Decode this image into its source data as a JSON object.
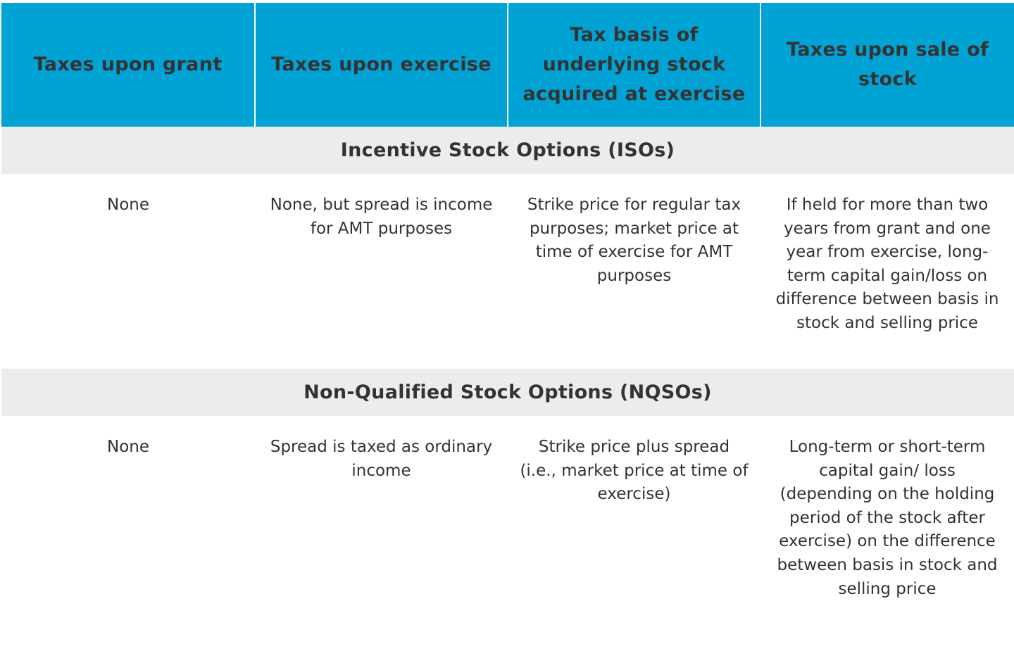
{
  "table": {
    "headers": [
      "Taxes upon grant",
      "Taxes upon exercise",
      "Tax basis of underlying stock acquired at exercise",
      "Taxes upon sale of stock"
    ],
    "sections": [
      {
        "title": "Incentive Stock Options (ISOs)",
        "cells": [
          "None",
          "None, but spread is income for AMT purposes",
          "Strike price for regular tax purposes; market price at time of exercise for AMT purposes",
          "If held for more than two years from grant and one year from exercise, long-term capital gain/loss on difference between basis in stock and selling price"
        ]
      },
      {
        "title": "Non-Qualified Stock Options (NQSOs)",
        "cells": [
          "None",
          "Spread is taxed as ordinary income",
          "Strike price plus spread (i.e., market price at time of exercise)",
          "Long-term or short-term capital gain/ loss (depending on the holding period of the stock after exercise) on the difference between basis in stock and selling price"
        ]
      }
    ],
    "colors": {
      "header_bg": "#00a3d3",
      "section_bg": "#ececec",
      "text": "#333333"
    }
  }
}
